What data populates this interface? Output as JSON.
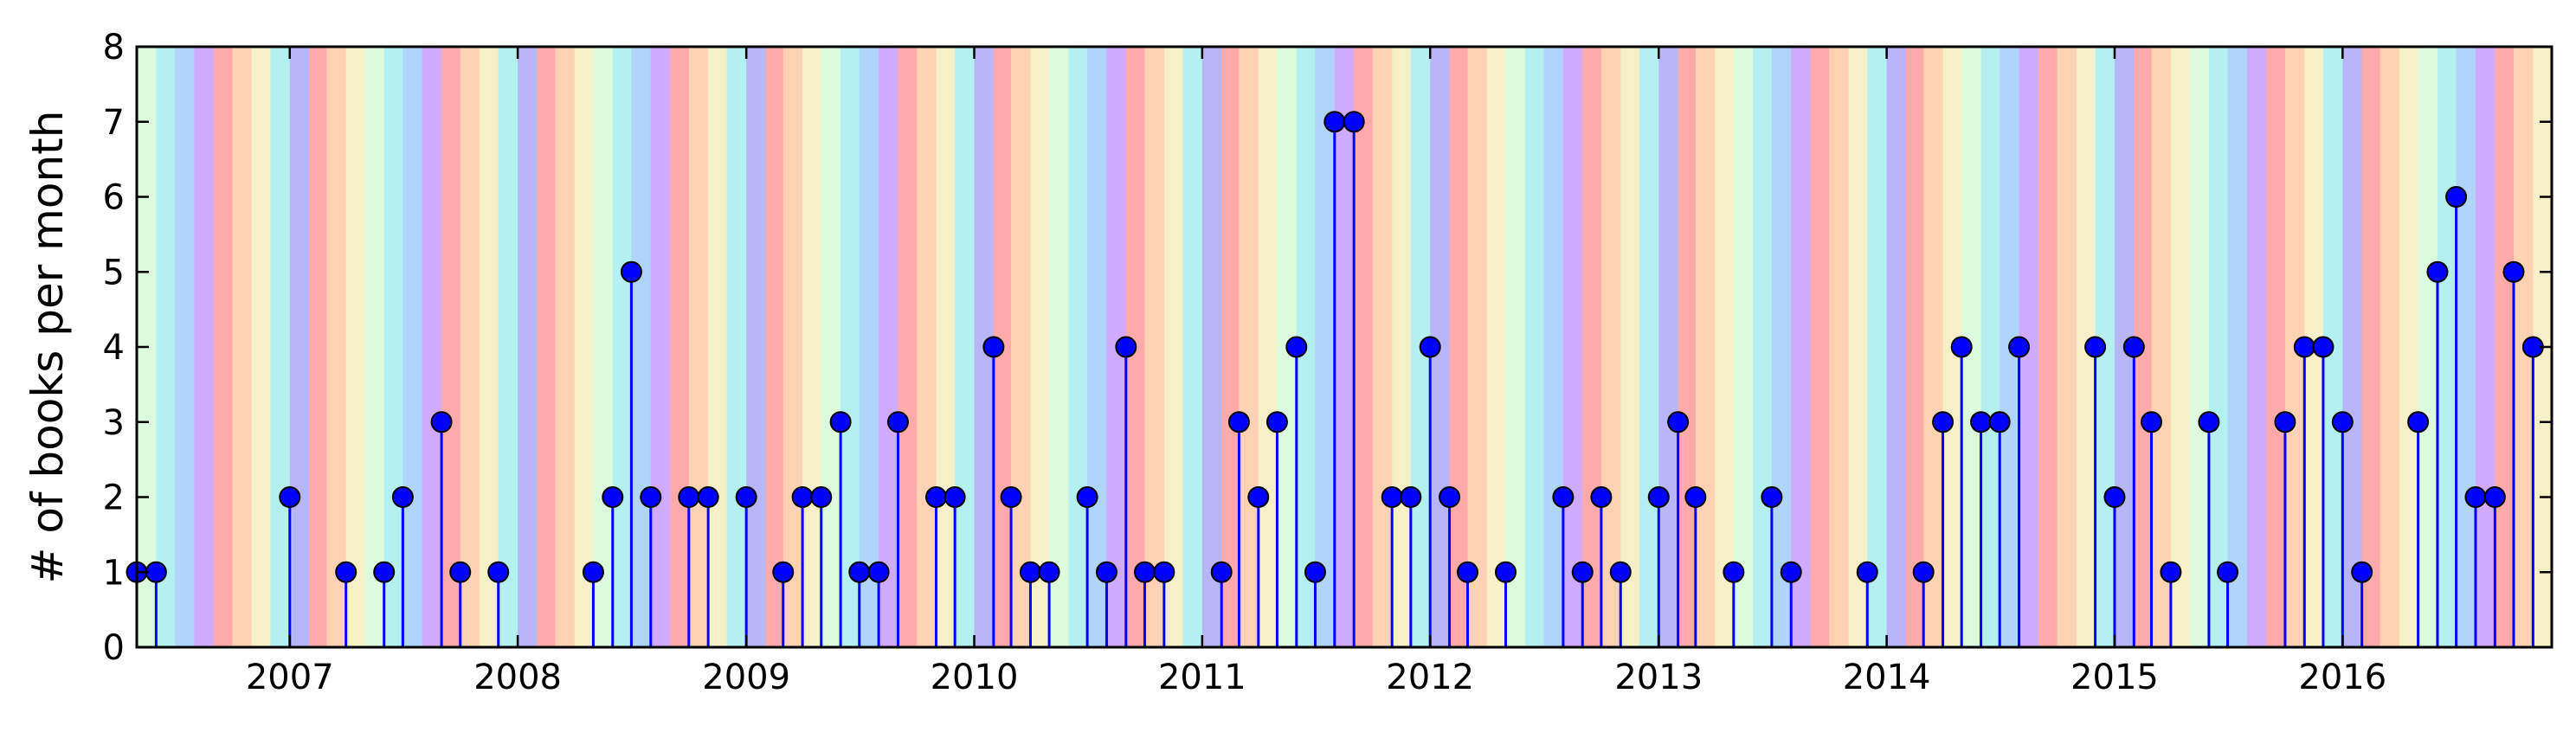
{
  "chart_data": {
    "type": "stem",
    "ylabel": "# of books per month",
    "ylim": [
      0,
      8
    ],
    "yticks": [
      0,
      1,
      2,
      3,
      4,
      5,
      6,
      7,
      8
    ],
    "xlim": [
      "2006-05-01",
      "2016-11-30"
    ],
    "xtick_labels": [
      "2007",
      "2008",
      "2009",
      "2010",
      "2011",
      "2012",
      "2013",
      "2014",
      "2015",
      "2016"
    ],
    "grid": false,
    "legend": "none",
    "background": "monthly colored bands cycling through a 12-color rainbow palette",
    "month_band_colors": [
      "#b6b6f8",
      "#ffaaaa",
      "#ffd2b4",
      "#f5f0c8",
      "#dcfadc",
      "#b4f0f0",
      "#b0d4fa",
      "#d0aaff",
      "#ffaaaa",
      "#ffd2b4",
      "#f5f0c8",
      "#b4f0f0"
    ],
    "stem_color": "#0000ff",
    "marker_color": "#0000ff",
    "series": [
      {
        "points": [
          {
            "x": "2006-05",
            "y": 1
          },
          {
            "x": "2006-06",
            "y": 1
          },
          {
            "x": "2007-01",
            "y": 2
          },
          {
            "x": "2007-04",
            "y": 1
          },
          {
            "x": "2007-06",
            "y": 1
          },
          {
            "x": "2007-07",
            "y": 2
          },
          {
            "x": "2007-09",
            "y": 3
          },
          {
            "x": "2007-10",
            "y": 1
          },
          {
            "x": "2007-12",
            "y": 1
          },
          {
            "x": "2008-05",
            "y": 1
          },
          {
            "x": "2008-06",
            "y": 2
          },
          {
            "x": "2008-07",
            "y": 5
          },
          {
            "x": "2008-08",
            "y": 2
          },
          {
            "x": "2008-10",
            "y": 2
          },
          {
            "x": "2008-11",
            "y": 2
          },
          {
            "x": "2009-01",
            "y": 2
          },
          {
            "x": "2009-03",
            "y": 1
          },
          {
            "x": "2009-04",
            "y": 2
          },
          {
            "x": "2009-05",
            "y": 2
          },
          {
            "x": "2009-06",
            "y": 3
          },
          {
            "x": "2009-07",
            "y": 1
          },
          {
            "x": "2009-08",
            "y": 1
          },
          {
            "x": "2009-09",
            "y": 3
          },
          {
            "x": "2009-11",
            "y": 2
          },
          {
            "x": "2009-12",
            "y": 2
          },
          {
            "x": "2010-02",
            "y": 4
          },
          {
            "x": "2010-03",
            "y": 2
          },
          {
            "x": "2010-04",
            "y": 1
          },
          {
            "x": "2010-05",
            "y": 1
          },
          {
            "x": "2010-07",
            "y": 2
          },
          {
            "x": "2010-08",
            "y": 1
          },
          {
            "x": "2010-09",
            "y": 4
          },
          {
            "x": "2010-10",
            "y": 1
          },
          {
            "x": "2010-11",
            "y": 1
          },
          {
            "x": "2011-02",
            "y": 1
          },
          {
            "x": "2011-03",
            "y": 3
          },
          {
            "x": "2011-04",
            "y": 2
          },
          {
            "x": "2011-05",
            "y": 3
          },
          {
            "x": "2011-06",
            "y": 4
          },
          {
            "x": "2011-07",
            "y": 1
          },
          {
            "x": "2011-08",
            "y": 7
          },
          {
            "x": "2011-09",
            "y": 7
          },
          {
            "x": "2011-11",
            "y": 2
          },
          {
            "x": "2011-12",
            "y": 2
          },
          {
            "x": "2012-01",
            "y": 4
          },
          {
            "x": "2012-02",
            "y": 2
          },
          {
            "x": "2012-03",
            "y": 1
          },
          {
            "x": "2012-05",
            "y": 1
          },
          {
            "x": "2012-08",
            "y": 2
          },
          {
            "x": "2012-09",
            "y": 1
          },
          {
            "x": "2012-10",
            "y": 2
          },
          {
            "x": "2012-11",
            "y": 1
          },
          {
            "x": "2013-01",
            "y": 2
          },
          {
            "x": "2013-02",
            "y": 3
          },
          {
            "x": "2013-03",
            "y": 2
          },
          {
            "x": "2013-05",
            "y": 1
          },
          {
            "x": "2013-07",
            "y": 2
          },
          {
            "x": "2013-08",
            "y": 1
          },
          {
            "x": "2013-12",
            "y": 1
          },
          {
            "x": "2014-03",
            "y": 1
          },
          {
            "x": "2014-04",
            "y": 3
          },
          {
            "x": "2014-05",
            "y": 4
          },
          {
            "x": "2014-06",
            "y": 3
          },
          {
            "x": "2014-07",
            "y": 3
          },
          {
            "x": "2014-08",
            "y": 4
          },
          {
            "x": "2014-12",
            "y": 4
          },
          {
            "x": "2015-01",
            "y": 2
          },
          {
            "x": "2015-02",
            "y": 4
          },
          {
            "x": "2015-03",
            "y": 3
          },
          {
            "x": "2015-04",
            "y": 1
          },
          {
            "x": "2015-06",
            "y": 3
          },
          {
            "x": "2015-07",
            "y": 1
          },
          {
            "x": "2015-10",
            "y": 3
          },
          {
            "x": "2015-11",
            "y": 4
          },
          {
            "x": "2015-12",
            "y": 4
          },
          {
            "x": "2016-01",
            "y": 3
          },
          {
            "x": "2016-02",
            "y": 1
          },
          {
            "x": "2016-05",
            "y": 3
          },
          {
            "x": "2016-06",
            "y": 5
          },
          {
            "x": "2016-07",
            "y": 6
          },
          {
            "x": "2016-08",
            "y": 2
          },
          {
            "x": "2016-09",
            "y": 2
          },
          {
            "x": "2016-10",
            "y": 5
          },
          {
            "x": "2016-11",
            "y": 4
          }
        ]
      }
    ]
  }
}
